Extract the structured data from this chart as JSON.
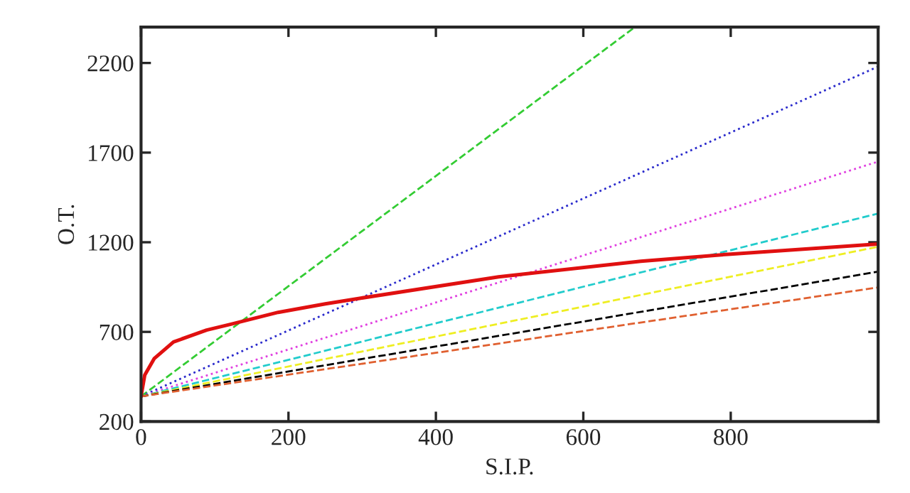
{
  "chart_data": {
    "type": "line",
    "xlabel": "S.I.P.",
    "ylabel": "O.T.",
    "xlim": [
      0,
      1000
    ],
    "ylim": [
      200,
      2400
    ],
    "xticks": [
      0,
      200,
      400,
      600,
      800
    ],
    "yticks": [
      200,
      700,
      1200,
      1700,
      2200
    ],
    "grid": false,
    "legend": false,
    "marker": "none",
    "series": [
      {
        "color": "#33cc33",
        "line_style": "dashed",
        "x": [
          0,
          670
        ],
        "values": [
          340,
          2400
        ]
      },
      {
        "color": "#2a2acc",
        "line_style": "dotted",
        "x": [
          0,
          1000
        ],
        "values": [
          340,
          2180
        ]
      },
      {
        "color": "#e040e0",
        "line_style": "dotted",
        "x": [
          0,
          1000
        ],
        "values": [
          340,
          1650
        ]
      },
      {
        "color": "#22cccc",
        "line_style": "dashed",
        "x": [
          0,
          1000
        ],
        "values": [
          340,
          1360
        ]
      },
      {
        "color": "#eeee22",
        "line_style": "dashed",
        "x": [
          0,
          1000
        ],
        "values": [
          340,
          1175
        ]
      },
      {
        "color": "#000000",
        "line_style": "dashed",
        "x": [
          0,
          1000
        ],
        "values": [
          340,
          1036
        ]
      },
      {
        "color": "#e06030",
        "line_style": "dashed",
        "x": [
          0,
          1000
        ],
        "values": [
          340,
          948
        ]
      },
      {
        "color": "#e01010",
        "line_style": "solid",
        "x": [
          0,
          5,
          18,
          44,
          89,
          121,
          186,
          250,
          298,
          485,
          678,
          800,
          1000
        ],
        "values": [
          340,
          459,
          552,
          644,
          710,
          742,
          809,
          856,
          888,
          1007,
          1094,
          1134,
          1190
        ]
      }
    ]
  }
}
